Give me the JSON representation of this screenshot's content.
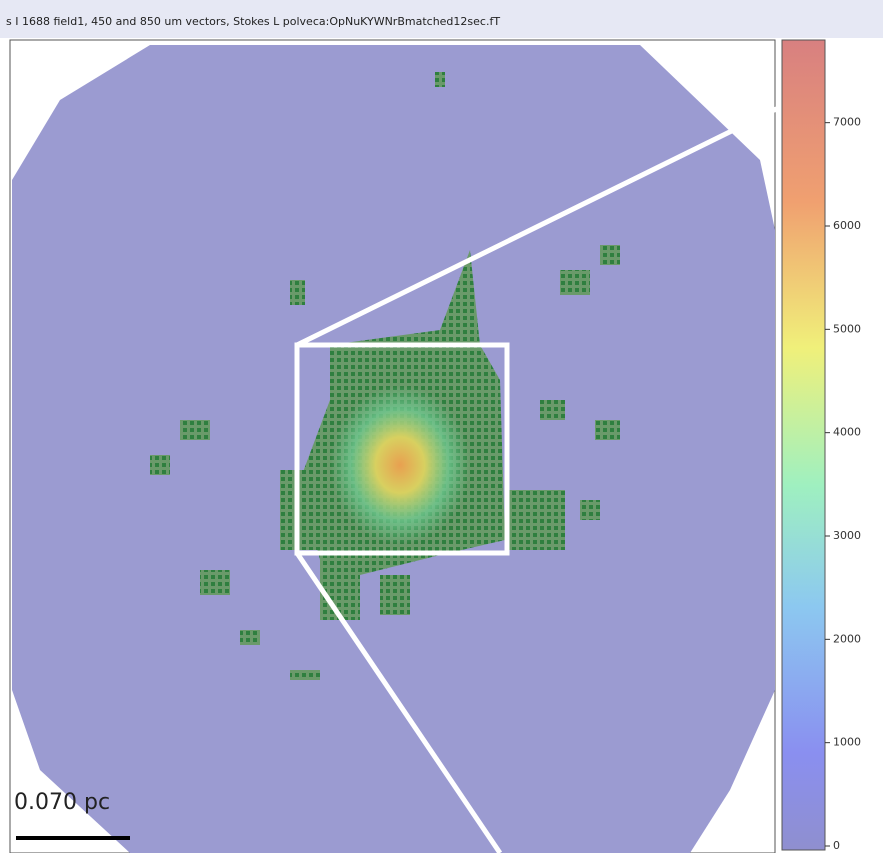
{
  "title": "s I 1688 field1, 450 and 850 um vectors, Stokes L polveca:OpNuKYWNrBmatched12sec.fT",
  "scale_bar": "0.070 pc",
  "colorbar": {
    "lim": [
      0,
      7800
    ],
    "ticks": [
      0,
      1000,
      2000,
      3000,
      4000,
      5000,
      6000,
      7000
    ]
  }
}
